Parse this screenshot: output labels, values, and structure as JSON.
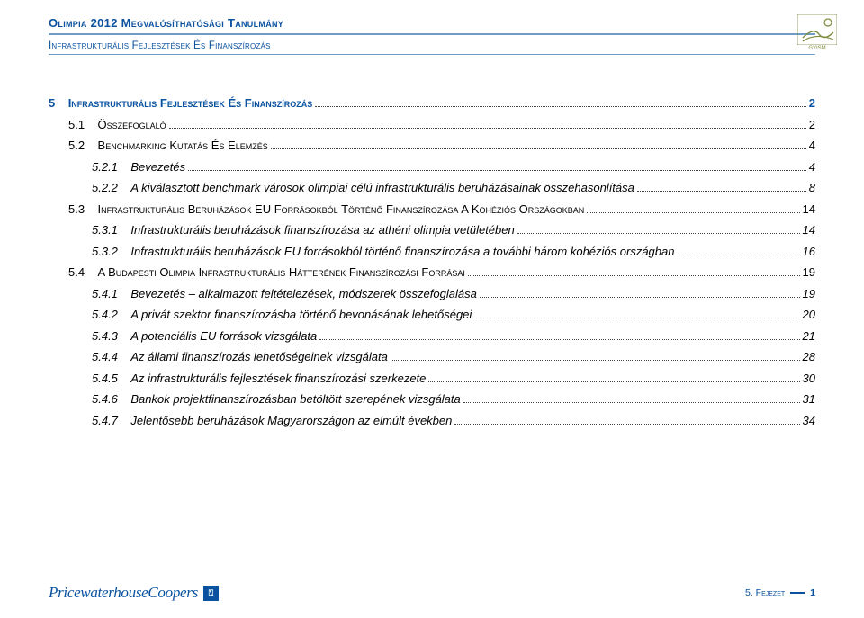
{
  "colors": {
    "brand_blue": "#0a52a0",
    "rule_blue": "#6e9bc8",
    "olive": "#7b8a3d",
    "text": "#000000",
    "dots": "#444444",
    "bg": "#ffffff"
  },
  "header": {
    "title": "Olimpia 2012 Megvalósíthatósági Tanulmány",
    "subtitle": "Infrastrukturális Fejlesztések És Finanszírozás",
    "logo_caption": "GYISM"
  },
  "toc": [
    {
      "level": 0,
      "num": "5",
      "label": "Infrastrukturális Fejlesztések És Finanszírozás",
      "page": "2"
    },
    {
      "level": 1,
      "num": "5.1",
      "label": "Összefoglaló",
      "page": "2"
    },
    {
      "level": 1,
      "num": "5.2",
      "label": "Benchmarking Kutatás És Elemzés",
      "page": "4"
    },
    {
      "level": 2,
      "num": "5.2.1",
      "label": "Bevezetés",
      "page": "4"
    },
    {
      "level": 2,
      "num": "5.2.2",
      "label": "A kiválasztott benchmark városok olimpiai célú infrastrukturális beruházásainak összehasonlítása",
      "page": "8"
    },
    {
      "level": 1,
      "num": "5.3",
      "label": "Infrastrukturális Beruházások EU Forrásokból Történő Finanszírozása A Kohéziós Országokban",
      "page": "14"
    },
    {
      "level": 2,
      "num": "5.3.1",
      "label": "Infrastrukturális beruházások finanszírozása az athéni olimpia vetületében",
      "page": "14"
    },
    {
      "level": 2,
      "num": "5.3.2",
      "label": "Infrastrukturális beruházások EU forrásokból történő finanszírozása a további három kohéziós országban",
      "page": "16"
    },
    {
      "level": 1,
      "num": "5.4",
      "label": "A Budapesti Olimpia Infrastrukturális Hátterének Finanszírozási Forrásai",
      "page": "19"
    },
    {
      "level": 2,
      "num": "5.4.1",
      "label": "Bevezetés – alkalmazott feltételezések, módszerek összefoglalása",
      "page": "19"
    },
    {
      "level": 2,
      "num": "5.4.2",
      "label": "A privát szektor finanszírozásba történő bevonásának lehetőségei",
      "page": "20"
    },
    {
      "level": 2,
      "num": "5.4.3",
      "label": "A potenciális EU források vizsgálata",
      "page": "21"
    },
    {
      "level": 2,
      "num": "5.4.4",
      "label": "Az állami finanszírozás lehetőségeinek vizsgálata",
      "page": "28"
    },
    {
      "level": 2,
      "num": "5.4.5",
      "label": "Az infrastrukturális fejlesztések finanszírozási szerkezete",
      "page": "30"
    },
    {
      "level": 2,
      "num": "5.4.6",
      "label": "Bankok projektfinanszírozásban betöltött szerepének vizsgálata",
      "page": "31"
    },
    {
      "level": 2,
      "num": "5.4.7",
      "label": "Jelentősebb beruházások Magyarországon az elmúlt években",
      "page": "34"
    }
  ],
  "footer": {
    "brand": "PricewaterhouseCoopers",
    "mark": "⍂",
    "right_label": "5. Fejezet",
    "page_num": "1"
  }
}
